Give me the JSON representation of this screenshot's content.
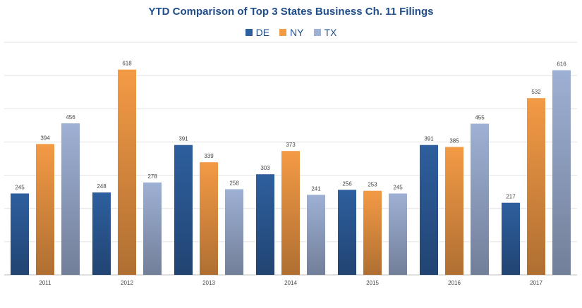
{
  "chart_data": {
    "type": "bar",
    "title": "YTD Comparison of Top 3 States Business Ch. 11 Filings",
    "categories": [
      "2011",
      "2012",
      "2013",
      "2014",
      "2015",
      "2016",
      "2017"
    ],
    "series": [
      {
        "name": "DE",
        "color": "#2e5f9e",
        "values": [
          245,
          248,
          391,
          303,
          256,
          391,
          217
        ]
      },
      {
        "name": "NY",
        "color": "#f39a45",
        "values": [
          394,
          618,
          339,
          373,
          253,
          385,
          532
        ]
      },
      {
        "name": "TX",
        "color": "#9eb0d4",
        "values": [
          456,
          278,
          258,
          241,
          245,
          455,
          616
        ]
      }
    ],
    "ylim": [
      0,
      700
    ],
    "grid": true,
    "legend": "top-center",
    "xlabel": "",
    "ylabel": ""
  }
}
